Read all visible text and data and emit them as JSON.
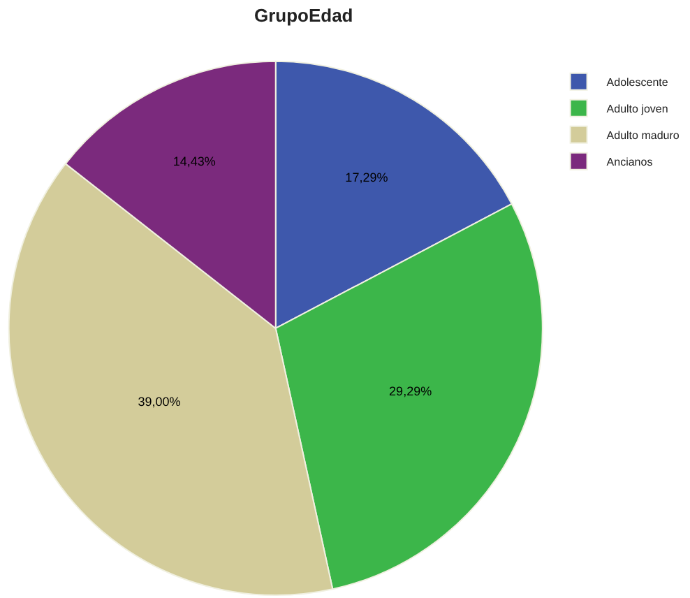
{
  "chart_data": {
    "type": "pie",
    "title": "GrupoEdad",
    "categories": [
      "Adolescente",
      "Adulto joven",
      "Adulto maduro",
      "Ancianos"
    ],
    "values": [
      17.29,
      29.29,
      39.0,
      14.43
    ],
    "value_labels": [
      "17,29%",
      "29,29%",
      "39,00%",
      "14,43%"
    ],
    "colors": [
      "#3e58ac",
      "#3cb64a",
      "#d3cc9a",
      "#7b2a7d"
    ],
    "legend": "top right"
  }
}
